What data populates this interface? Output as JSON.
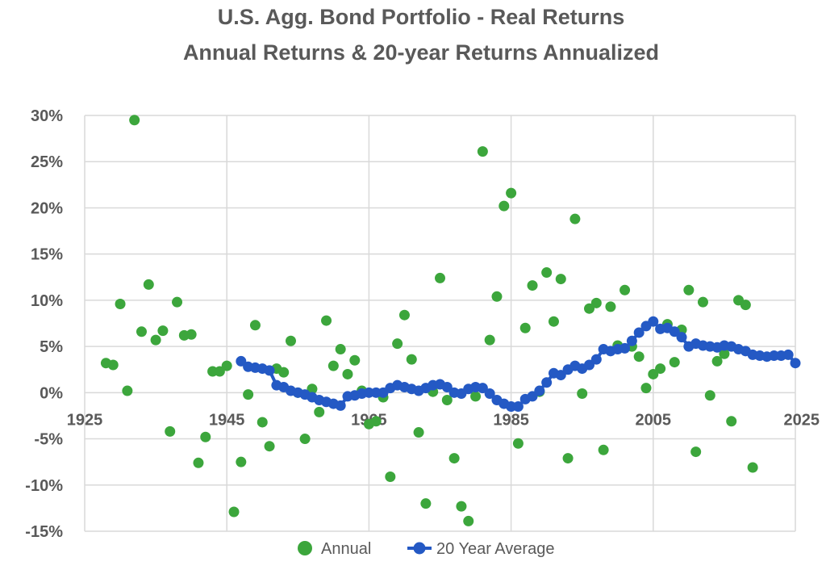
{
  "chart_data": {
    "type": "scatter",
    "title_line1": "U.S. Agg. Bond Portfolio - Real Returns",
    "title_line2": "Annual Returns & 20-year Returns Annualized",
    "xlim": [
      1925,
      2025
    ],
    "ylim": [
      -15,
      30
    ],
    "x_ticks": [
      1925,
      1945,
      1965,
      1985,
      2005,
      2025
    ],
    "y_ticks": [
      30,
      25,
      20,
      15,
      10,
      5,
      0,
      -5,
      -10,
      -15
    ],
    "y_tick_suffix": "%",
    "grid": true,
    "legend_position": "bottom",
    "series": [
      {
        "name": "Annual",
        "color": "#3ca63c",
        "style": "points",
        "points": [
          [
            1928,
            3.2
          ],
          [
            1929,
            3.0
          ],
          [
            1930,
            9.6
          ],
          [
            1931,
            0.2
          ],
          [
            1932,
            29.5
          ],
          [
            1933,
            6.6
          ],
          [
            1934,
            11.7
          ],
          [
            1935,
            5.7
          ],
          [
            1936,
            6.7
          ],
          [
            1937,
            -4.2
          ],
          [
            1938,
            9.8
          ],
          [
            1939,
            6.2
          ],
          [
            1940,
            6.3
          ],
          [
            1941,
            -7.6
          ],
          [
            1942,
            -4.8
          ],
          [
            1943,
            2.3
          ],
          [
            1944,
            2.3
          ],
          [
            1945,
            2.9
          ],
          [
            1946,
            -12.9
          ],
          [
            1947,
            -7.5
          ],
          [
            1948,
            -0.2
          ],
          [
            1949,
            7.3
          ],
          [
            1950,
            -3.2
          ],
          [
            1951,
            -5.8
          ],
          [
            1952,
            2.6
          ],
          [
            1953,
            2.2
          ],
          [
            1954,
            5.6
          ],
          [
            1955,
            0.0
          ],
          [
            1956,
            -5.0
          ],
          [
            1957,
            0.4
          ],
          [
            1958,
            -2.1
          ],
          [
            1959,
            7.8
          ],
          [
            1960,
            2.9
          ],
          [
            1961,
            4.7
          ],
          [
            1962,
            2.0
          ],
          [
            1963,
            3.5
          ],
          [
            1964,
            0.2
          ],
          [
            1965,
            -3.4
          ],
          [
            1966,
            -3.1
          ],
          [
            1967,
            -0.5
          ],
          [
            1968,
            -9.1
          ],
          [
            1969,
            5.3
          ],
          [
            1970,
            8.4
          ],
          [
            1971,
            3.6
          ],
          [
            1972,
            -4.3
          ],
          [
            1973,
            -12.0
          ],
          [
            1974,
            0.1
          ],
          [
            1975,
            12.4
          ],
          [
            1976,
            -0.8
          ],
          [
            1977,
            -7.1
          ],
          [
            1978,
            -12.3
          ],
          [
            1979,
            -13.9
          ],
          [
            1980,
            -0.4
          ],
          [
            1981,
            26.1
          ],
          [
            1982,
            5.7
          ],
          [
            1983,
            10.4
          ],
          [
            1984,
            20.2
          ],
          [
            1985,
            21.6
          ],
          [
            1986,
            -5.5
          ],
          [
            1987,
            7.0
          ],
          [
            1988,
            11.6
          ],
          [
            1989,
            0.1
          ],
          [
            1990,
            13.0
          ],
          [
            1991,
            7.7
          ],
          [
            1992,
            12.3
          ],
          [
            1993,
            -7.1
          ],
          [
            1994,
            18.8
          ],
          [
            1995,
            -0.1
          ],
          [
            1996,
            9.1
          ],
          [
            1997,
            9.7
          ],
          [
            1998,
            -6.2
          ],
          [
            1999,
            9.3
          ],
          [
            2000,
            5.1
          ],
          [
            2001,
            11.1
          ],
          [
            2002,
            5.0
          ],
          [
            2003,
            3.9
          ],
          [
            2004,
            0.5
          ],
          [
            2005,
            2.0
          ],
          [
            2006,
            2.6
          ],
          [
            2007,
            7.4
          ],
          [
            2008,
            3.3
          ],
          [
            2009,
            6.8
          ],
          [
            2010,
            11.1
          ],
          [
            2011,
            -6.4
          ],
          [
            2012,
            9.8
          ],
          [
            2013,
            -0.3
          ],
          [
            2014,
            3.4
          ],
          [
            2015,
            4.2
          ],
          [
            2016,
            -3.1
          ],
          [
            2017,
            10.0
          ],
          [
            2018,
            9.5
          ],
          [
            2019,
            -8.1
          ]
        ]
      },
      {
        "name": "20 Year Average",
        "color": "#2459c4",
        "style": "line-markers",
        "points": [
          [
            1947,
            3.4
          ],
          [
            1948,
            2.8
          ],
          [
            1949,
            2.7
          ],
          [
            1950,
            2.6
          ],
          [
            1951,
            2.4
          ],
          [
            1952,
            0.8
          ],
          [
            1953,
            0.6
          ],
          [
            1954,
            0.2
          ],
          [
            1955,
            0.0
          ],
          [
            1956,
            -0.2
          ],
          [
            1957,
            -0.5
          ],
          [
            1958,
            -0.8
          ],
          [
            1959,
            -1.0
          ],
          [
            1960,
            -1.2
          ],
          [
            1961,
            -1.4
          ],
          [
            1962,
            -0.4
          ],
          [
            1963,
            -0.3
          ],
          [
            1964,
            -0.1
          ],
          [
            1965,
            0.0
          ],
          [
            1966,
            0.0
          ],
          [
            1967,
            0.0
          ],
          [
            1968,
            0.5
          ],
          [
            1969,
            0.8
          ],
          [
            1970,
            0.6
          ],
          [
            1971,
            0.4
          ],
          [
            1972,
            0.2
          ],
          [
            1973,
            0.5
          ],
          [
            1974,
            0.8
          ],
          [
            1975,
            0.9
          ],
          [
            1976,
            0.6
          ],
          [
            1977,
            0.0
          ],
          [
            1978,
            -0.1
          ],
          [
            1979,
            0.4
          ],
          [
            1980,
            0.6
          ],
          [
            1981,
            0.5
          ],
          [
            1982,
            -0.1
          ],
          [
            1983,
            -0.8
          ],
          [
            1984,
            -1.2
          ],
          [
            1985,
            -1.5
          ],
          [
            1986,
            -1.5
          ],
          [
            1987,
            -0.7
          ],
          [
            1988,
            -0.4
          ],
          [
            1989,
            0.2
          ],
          [
            1990,
            1.1
          ],
          [
            1991,
            2.1
          ],
          [
            1992,
            1.9
          ],
          [
            1993,
            2.5
          ],
          [
            1994,
            2.9
          ],
          [
            1995,
            2.6
          ],
          [
            1996,
            3.0
          ],
          [
            1997,
            3.6
          ],
          [
            1998,
            4.7
          ],
          [
            1999,
            4.5
          ],
          [
            2000,
            4.7
          ],
          [
            2001,
            4.8
          ],
          [
            2002,
            5.6
          ],
          [
            2003,
            6.5
          ],
          [
            2004,
            7.2
          ],
          [
            2005,
            7.7
          ],
          [
            2006,
            6.9
          ],
          [
            2007,
            7.0
          ],
          [
            2008,
            6.6
          ],
          [
            2009,
            6.0
          ],
          [
            2010,
            5.0
          ],
          [
            2011,
            5.3
          ],
          [
            2012,
            5.1
          ],
          [
            2013,
            5.0
          ],
          [
            2014,
            4.9
          ],
          [
            2015,
            5.1
          ],
          [
            2016,
            5.0
          ],
          [
            2017,
            4.7
          ],
          [
            2018,
            4.5
          ],
          [
            2019,
            4.1
          ],
          [
            2020,
            4.0
          ],
          [
            2021,
            3.9
          ],
          [
            2022,
            4.0
          ],
          [
            2023,
            4.0
          ],
          [
            2024,
            4.1
          ],
          [
            2025,
            3.2
          ]
        ]
      }
    ]
  }
}
